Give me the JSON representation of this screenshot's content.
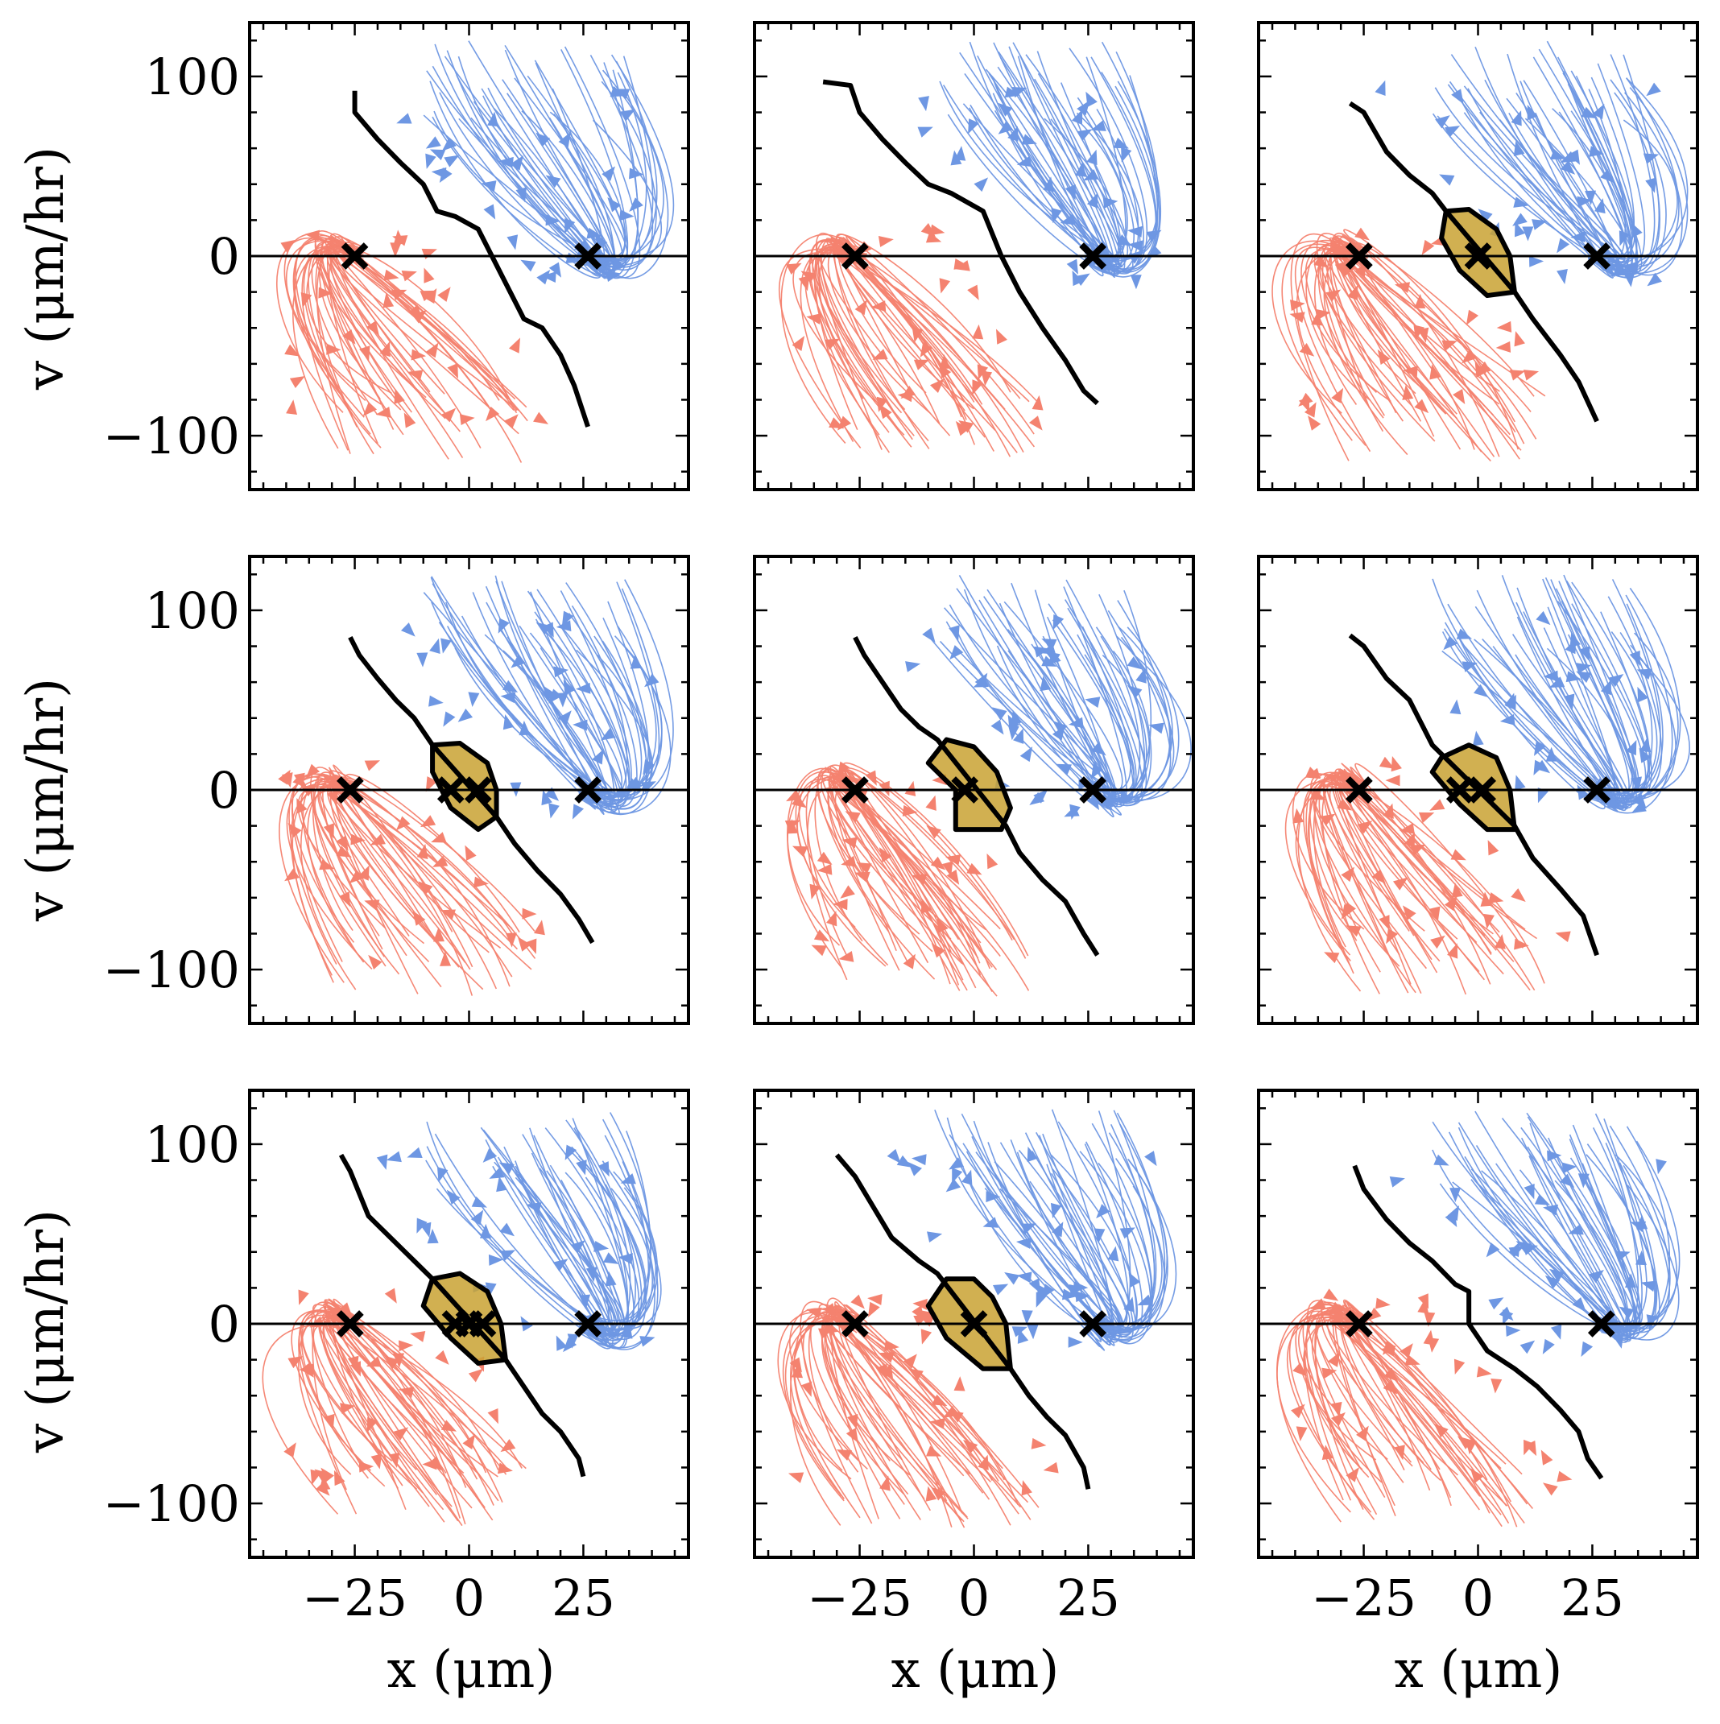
{
  "colors": {
    "left_basin": "#f4826f",
    "right_basin": "#6e97e3",
    "middle_basin": "#c9a233",
    "separatrix": "#000000",
    "fixed_point": "#000000"
  },
  "chart_data": {
    "type": "streamplot-grid",
    "rows": 3,
    "cols": 3,
    "xlabel": "x (μm)",
    "ylabel": "v (μm/hr)",
    "xlim": [
      -48,
      48
    ],
    "ylim": [
      -130,
      130
    ],
    "xticks": [
      -25,
      0,
      25
    ],
    "xtick_labels": [
      "−25",
      "0",
      "25"
    ],
    "yticks": [
      -100,
      0,
      100
    ],
    "ytick_labels": [
      "−100",
      "0",
      "100"
    ],
    "panels": [
      {
        "fixed_points_x": [
          -25,
          26
        ],
        "middle_basin": false,
        "separatrix": [
          [
            -25,
            92
          ],
          [
            -25,
            80
          ],
          [
            -20,
            65
          ],
          [
            -15,
            52
          ],
          [
            -10,
            40
          ],
          [
            -7,
            25
          ],
          [
            -3,
            22
          ],
          [
            2,
            15
          ],
          [
            5,
            0
          ],
          [
            8,
            -15
          ],
          [
            12,
            -35
          ],
          [
            16,
            -40
          ],
          [
            20,
            -55
          ],
          [
            23,
            -72
          ],
          [
            26,
            -95
          ]
        ]
      },
      {
        "fixed_points_x": [
          -26,
          26
        ],
        "middle_basin": false,
        "separatrix": [
          [
            -33,
            97
          ],
          [
            -27,
            95
          ],
          [
            -25,
            80
          ],
          [
            -20,
            65
          ],
          [
            -15,
            52
          ],
          [
            -10,
            40
          ],
          [
            -5,
            35
          ],
          [
            2,
            25
          ],
          [
            6,
            0
          ],
          [
            10,
            -20
          ],
          [
            15,
            -40
          ],
          [
            20,
            -58
          ],
          [
            24,
            -75
          ],
          [
            27,
            -82
          ]
        ]
      },
      {
        "fixed_points_x": [
          -26,
          0,
          26
        ],
        "middle_basin": true,
        "basin": [
          [
            -7,
            25
          ],
          [
            -2,
            26
          ],
          [
            4,
            15
          ],
          [
            7,
            0
          ],
          [
            8,
            -20
          ],
          [
            2,
            -22
          ],
          [
            -4,
            -8
          ],
          [
            -8,
            10
          ]
        ],
        "separatrix": [
          [
            -28,
            85
          ],
          [
            -25,
            80
          ],
          [
            -20,
            58
          ],
          [
            -15,
            45
          ],
          [
            -10,
            35
          ],
          [
            -7,
            25
          ],
          [
            8,
            -20
          ],
          [
            12,
            -35
          ],
          [
            18,
            -55
          ],
          [
            22,
            -70
          ],
          [
            26,
            -92
          ]
        ]
      },
      {
        "fixed_points_x": [
          -26,
          -4,
          2,
          26
        ],
        "middle_basin": true,
        "basin": [
          [
            -8,
            25
          ],
          [
            -2,
            26
          ],
          [
            4,
            15
          ],
          [
            6,
            0
          ],
          [
            6,
            -15
          ],
          [
            2,
            -22
          ],
          [
            -4,
            -10
          ],
          [
            -8,
            10
          ]
        ],
        "separatrix": [
          [
            -26,
            85
          ],
          [
            -24,
            75
          ],
          [
            -20,
            62
          ],
          [
            -16,
            50
          ],
          [
            -12,
            40
          ],
          [
            -8,
            25
          ],
          [
            6,
            -15
          ],
          [
            10,
            -30
          ],
          [
            15,
            -45
          ],
          [
            20,
            -58
          ],
          [
            24,
            -72
          ],
          [
            27,
            -85
          ]
        ]
      },
      {
        "fixed_points_x": [
          -26,
          -2,
          26
        ],
        "middle_basin": true,
        "basin": [
          [
            -6,
            28
          ],
          [
            0,
            24
          ],
          [
            5,
            10
          ],
          [
            8,
            -10
          ],
          [
            6,
            -22
          ],
          [
            -4,
            -22
          ],
          [
            -4,
            0
          ],
          [
            -10,
            15
          ]
        ],
        "separatrix": [
          [
            -26,
            85
          ],
          [
            -24,
            75
          ],
          [
            -20,
            60
          ],
          [
            -16,
            45
          ],
          [
            -12,
            35
          ],
          [
            -8,
            28
          ],
          [
            7,
            -20
          ],
          [
            10,
            -35
          ],
          [
            15,
            -50
          ],
          [
            20,
            -62
          ],
          [
            24,
            -80
          ],
          [
            27,
            -92
          ]
        ]
      },
      {
        "fixed_points_x": [
          -26,
          -4,
          1,
          26
        ],
        "middle_basin": true,
        "basin": [
          [
            -8,
            18
          ],
          [
            -2,
            25
          ],
          [
            4,
            18
          ],
          [
            7,
            0
          ],
          [
            8,
            -22
          ],
          [
            2,
            -22
          ],
          [
            -4,
            -8
          ],
          [
            -10,
            10
          ]
        ],
        "separatrix": [
          [
            -28,
            86
          ],
          [
            -25,
            80
          ],
          [
            -20,
            62
          ],
          [
            -15,
            50
          ],
          [
            -12,
            35
          ],
          [
            -10,
            25
          ],
          [
            8,
            -20
          ],
          [
            12,
            -38
          ],
          [
            18,
            -55
          ],
          [
            23,
            -70
          ],
          [
            26,
            -92
          ]
        ]
      },
      {
        "fixed_points_x": [
          -26,
          -3,
          0,
          3,
          26
        ],
        "middle_basin": true,
        "basin": [
          [
            -8,
            25
          ],
          [
            -2,
            28
          ],
          [
            4,
            18
          ],
          [
            7,
            0
          ],
          [
            8,
            -20
          ],
          [
            2,
            -22
          ],
          [
            -4,
            -8
          ],
          [
            -10,
            10
          ]
        ],
        "separatrix": [
          [
            -28,
            94
          ],
          [
            -26,
            85
          ],
          [
            -22,
            60
          ],
          [
            -16,
            45
          ],
          [
            -12,
            35
          ],
          [
            -8,
            25
          ],
          [
            8,
            -20
          ],
          [
            12,
            -35
          ],
          [
            16,
            -50
          ],
          [
            20,
            -60
          ],
          [
            24,
            -75
          ],
          [
            25,
            -85
          ]
        ]
      },
      {
        "fixed_points_x": [
          -26,
          0,
          26
        ],
        "middle_basin": true,
        "basin": [
          [
            -6,
            25
          ],
          [
            0,
            25
          ],
          [
            4,
            15
          ],
          [
            7,
            0
          ],
          [
            8,
            -25
          ],
          [
            2,
            -25
          ],
          [
            -6,
            -8
          ],
          [
            -10,
            10
          ]
        ],
        "separatrix": [
          [
            -30,
            94
          ],
          [
            -26,
            82
          ],
          [
            -22,
            65
          ],
          [
            -18,
            48
          ],
          [
            -12,
            35
          ],
          [
            -8,
            28
          ],
          [
            8,
            -25
          ],
          [
            12,
            -40
          ],
          [
            16,
            -52
          ],
          [
            20,
            -62
          ],
          [
            24,
            -80
          ],
          [
            25,
            -92
          ]
        ]
      },
      {
        "fixed_points_x": [
          -26,
          27
        ],
        "middle_basin": false,
        "separatrix": [
          [
            -27,
            88
          ],
          [
            -25,
            75
          ],
          [
            -20,
            58
          ],
          [
            -15,
            45
          ],
          [
            -10,
            35
          ],
          [
            -5,
            22
          ],
          [
            -2,
            18
          ],
          [
            -2,
            0
          ],
          [
            2,
            -15
          ],
          [
            8,
            -25
          ],
          [
            13,
            -35
          ],
          [
            18,
            -48
          ],
          [
            22,
            -60
          ],
          [
            24,
            -75
          ],
          [
            27,
            -86
          ]
        ]
      }
    ]
  }
}
